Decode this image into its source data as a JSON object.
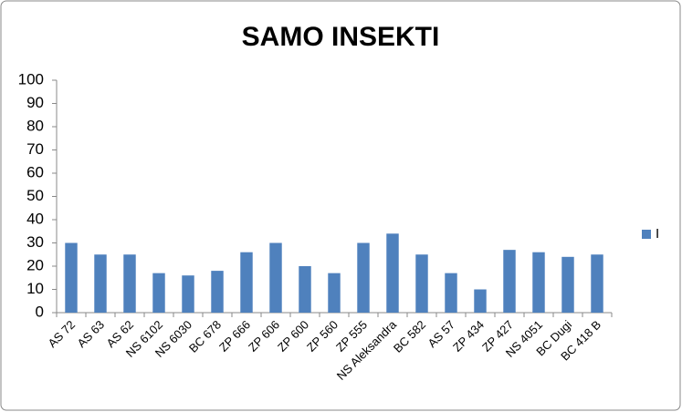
{
  "chart_data": {
    "type": "bar",
    "title": "SAMO INSEKTI",
    "categories": [
      "AS 72",
      "AS 63",
      "AS 62",
      "NS 6102",
      "NS 6030",
      "BC 678",
      "ZP 666",
      "ZP 606",
      "ZP 600",
      "ZP 560",
      "ZP 555",
      "NS Aleksandra",
      "BC 582",
      "AS 57",
      "ZP 434",
      "ZP 427",
      "NS 4051",
      "BC Dugi",
      "BC 418 B"
    ],
    "series": [
      {
        "name": "I",
        "color": "#4f81bd",
        "values": [
          30,
          25,
          25,
          17,
          16,
          18,
          26,
          30,
          20,
          17,
          30,
          34,
          25,
          17,
          10,
          27,
          26,
          24,
          25
        ]
      }
    ],
    "ylim": [
      0,
      100
    ],
    "yticks": [
      0,
      10,
      20,
      30,
      40,
      50,
      60,
      70,
      80,
      90,
      100
    ],
    "grid": false,
    "legend": "right"
  }
}
